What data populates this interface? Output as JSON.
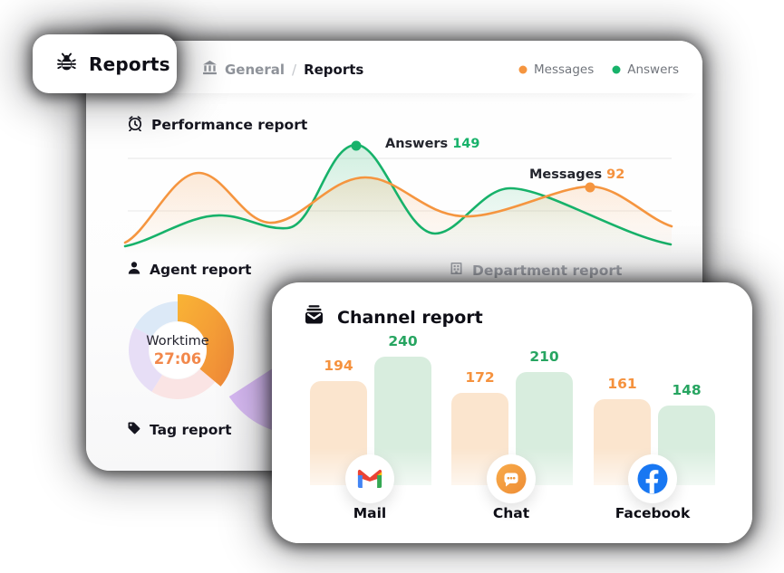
{
  "reports_tab": {
    "label": "Reports"
  },
  "breadcrumb": {
    "parent": "General",
    "separator": "/",
    "current": "Reports"
  },
  "legend": {
    "items": [
      {
        "label": "Messages",
        "color": "#F5953F"
      },
      {
        "label": "Answers",
        "color": "#17B26A"
      }
    ]
  },
  "performance_report": {
    "title": "Performance report",
    "chart_data": {
      "type": "line",
      "style": "smooth area curves, axes hidden, faint horizontal gridlines",
      "series": [
        {
          "name": "Messages",
          "color": "#F5953F",
          "approx_values": [
            10,
            104,
            34,
            98,
            44,
            92,
            22
          ],
          "labeled_point": {
            "label": "Messages",
            "value": "92"
          }
        },
        {
          "name": "Answers",
          "color": "#17B26A",
          "approx_values": [
            8,
            58,
            34,
            149,
            20,
            96,
            10
          ],
          "labeled_point": {
            "label": "Answers",
            "value": "149"
          }
        }
      ]
    }
  },
  "agent_report": {
    "title": "Agent report",
    "chart_data": {
      "type": "pie",
      "center_label": "Worktime",
      "center_value": "27:06",
      "slices": [
        {
          "name": "worktime-highlight",
          "color": "#F5A13C",
          "approx_percent": 36,
          "emphasized": true
        },
        {
          "name": "segment-pink",
          "color": "#FAE4E4",
          "approx_percent": 23
        },
        {
          "name": "segment-purple",
          "color": "#E7DEF6",
          "approx_percent": 24
        },
        {
          "name": "segment-blue",
          "color": "#DCE9F7",
          "approx_percent": 17
        }
      ]
    }
  },
  "department_report": {
    "title": "Department report",
    "disabled": true
  },
  "tag_report": {
    "title": "Tag report"
  },
  "channel_report": {
    "title": "Channel report",
    "chart_data": {
      "type": "bar",
      "categories": [
        "Mail",
        "Chat",
        "Facebook"
      ],
      "series": [
        {
          "name": "Messages",
          "color": "#FBE5CE",
          "label_color": "#F5923E",
          "values": [
            194,
            172,
            161
          ]
        },
        {
          "name": "Answers",
          "color": "#D8EDDE",
          "label_color": "#27A561",
          "values": [
            240,
            210,
            148
          ]
        }
      ]
    }
  }
}
